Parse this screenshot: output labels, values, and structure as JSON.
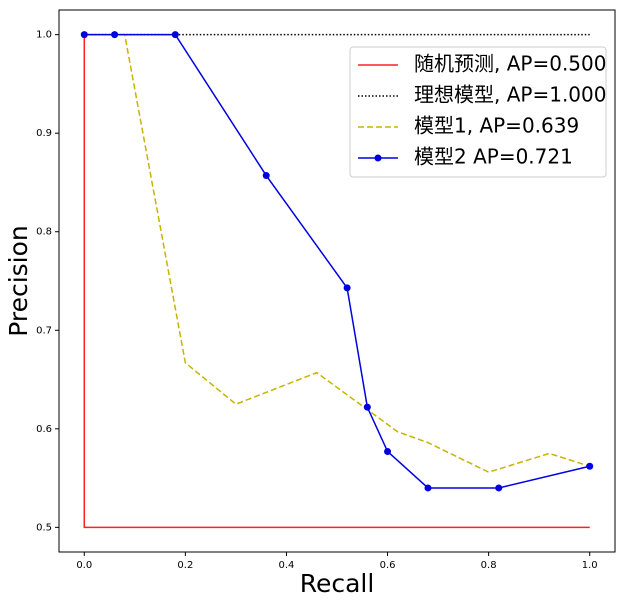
{
  "chart_data": {
    "type": "line",
    "xlabel": "Recall",
    "ylabel": "Precision",
    "xlim": [
      -0.05,
      1.05
    ],
    "ylim": [
      0.475,
      1.025
    ],
    "xticks": [
      {
        "value": 0,
        "label": "0.0"
      },
      0.2,
      0.4,
      0.6,
      0.8,
      {
        "value": 1,
        "label": "1.0"
      }
    ],
    "yticks": [
      0.5,
      0.6,
      0.7,
      0.8,
      0.9,
      {
        "value": 1,
        "label": "1.0"
      }
    ],
    "legend": "upper right",
    "series": [
      {
        "name": "随机预测, AP=0.500",
        "color": "#ff2020",
        "linestyle": "solid",
        "marker": "none",
        "x": [
          0,
          0,
          1
        ],
        "values": [
          1,
          0.5,
          0.5
        ]
      },
      {
        "name": "理想模型, AP=1.000",
        "color": "#000000",
        "linestyle": "dotted",
        "marker": "none",
        "x": [
          0,
          1
        ],
        "values": [
          1,
          1
        ]
      },
      {
        "name": "模型1, AP=0.639",
        "color": "#c8b400",
        "linestyle": "dashed",
        "marker": "none",
        "x": [
          0,
          0.08,
          0.2,
          0.3,
          0.46,
          0.62,
          0.68,
          0.8,
          0.92,
          1
        ],
        "values": [
          1,
          1,
          0.667,
          0.625,
          0.657,
          0.597,
          0.586,
          0.556,
          0.575,
          0.562
        ]
      },
      {
        "name": "模型2 AP=0.721",
        "color": "#0000e0",
        "linestyle": "solid",
        "marker": "circle",
        "x": [
          0,
          0.06,
          0.18,
          0.36,
          0.52,
          0.56,
          0.6,
          0.68,
          0.82,
          1
        ],
        "values": [
          1,
          1,
          1,
          0.857,
          0.743,
          0.622,
          0.577,
          0.54,
          0.54,
          0.562
        ]
      }
    ]
  }
}
